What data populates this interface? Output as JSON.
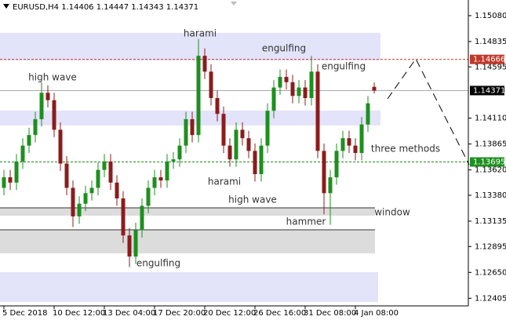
{
  "chart_data": {
    "type": "candlestick",
    "title": "EURUSD,H4  1.14406 1.14447 1.14343 1.14371",
    "categories": [
      "5 Dec 2018",
      null,
      null,
      null,
      null,
      null,
      null,
      null,
      "10 Dec 12:00",
      null,
      null,
      null,
      null,
      null,
      null,
      null,
      "13 Dec 04:00",
      null,
      null,
      null,
      null,
      null,
      null,
      null,
      "17 Dec 20:00",
      null,
      null,
      null,
      null,
      null,
      null,
      null,
      "20 Dec 12:00",
      null,
      null,
      null,
      null,
      null,
      null,
      null,
      "26 Dec 16:00",
      null,
      null,
      null,
      null,
      null,
      null,
      null,
      "31 Dec 08:00",
      null,
      null,
      null,
      null,
      null,
      null,
      null,
      "4 Jan 08:00",
      null,
      null,
      null
    ],
    "open": [
      1.1345,
      1.1355,
      1.135,
      1.137,
      1.1385,
      1.1395,
      1.141,
      1.1435,
      1.1428,
      1.14,
      1.1368,
      1.1345,
      1.1318,
      1.133,
      1.134,
      1.1345,
      1.1362,
      1.137,
      1.135,
      1.1335,
      1.13,
      1.128,
      1.1305,
      1.1328,
      1.1345,
      1.1355,
      1.1352,
      1.137,
      1.1372,
      1.1385,
      1.141,
      1.1395,
      1.147,
      1.1455,
      1.143,
      1.1415,
      1.1385,
      1.1372,
      1.14,
      1.1392,
      1.138,
      1.1358,
      1.1385,
      1.1418,
      1.144,
      1.145,
      1.1445,
      1.1432,
      1.144,
      1.143,
      1.1455,
      1.138,
      1.134,
      1.1355,
      1.138,
      1.1392,
      1.1385,
      1.1378,
      1.1405,
      1.14406
    ],
    "high": [
      1.1362,
      1.1362,
      1.1377,
      1.1392,
      1.1402,
      1.1417,
      1.1445,
      1.1442,
      1.1435,
      1.1407,
      1.1375,
      1.1352,
      1.1337,
      1.1347,
      1.1352,
      1.1369,
      1.1377,
      1.1377,
      1.1357,
      1.1342,
      1.1307,
      1.1312,
      1.1335,
      1.1352,
      1.1362,
      1.1362,
      1.1377,
      1.1379,
      1.1392,
      1.1417,
      1.1417,
      1.1486,
      1.1477,
      1.1462,
      1.1437,
      1.1422,
      1.1392,
      1.1407,
      1.1407,
      1.1399,
      1.1387,
      1.1392,
      1.1425,
      1.1447,
      1.1457,
      1.1457,
      1.1452,
      1.1447,
      1.1447,
      1.147,
      1.1462,
      1.1387,
      1.1362,
      1.1387,
      1.1399,
      1.1399,
      1.1392,
      1.1412,
      1.1432,
      1.14447
    ],
    "low": [
      1.1338,
      1.1343,
      1.1343,
      1.1363,
      1.1378,
      1.1388,
      1.1403,
      1.1421,
      1.1393,
      1.1361,
      1.1338,
      1.1308,
      1.1311,
      1.1323,
      1.1333,
      1.1338,
      1.1355,
      1.1343,
      1.1328,
      1.1293,
      1.127,
      1.1273,
      1.1298,
      1.1321,
      1.1338,
      1.1345,
      1.1345,
      1.1363,
      1.1365,
      1.1378,
      1.1388,
      1.1388,
      1.1448,
      1.1423,
      1.1408,
      1.1378,
      1.1365,
      1.1365,
      1.1385,
      1.1373,
      1.1351,
      1.1351,
      1.1378,
      1.1411,
      1.1433,
      1.1438,
      1.1425,
      1.1425,
      1.1423,
      1.1423,
      1.1373,
      1.132,
      1.131,
      1.1348,
      1.1373,
      1.1378,
      1.1371,
      1.1371,
      1.1398,
      1.14343
    ],
    "close": [
      1.1355,
      1.135,
      1.137,
      1.1385,
      1.1395,
      1.141,
      1.1435,
      1.1428,
      1.14,
      1.1368,
      1.1345,
      1.1318,
      1.133,
      1.134,
      1.1345,
      1.1362,
      1.137,
      1.135,
      1.1335,
      1.13,
      1.128,
      1.1305,
      1.1328,
      1.1345,
      1.1355,
      1.1352,
      1.137,
      1.1372,
      1.1385,
      1.141,
      1.1395,
      1.147,
      1.1455,
      1.143,
      1.1415,
      1.1385,
      1.1372,
      1.14,
      1.1392,
      1.138,
      1.1358,
      1.1385,
      1.1418,
      1.144,
      1.145,
      1.1445,
      1.1432,
      1.144,
      1.143,
      1.1455,
      1.138,
      1.134,
      1.1355,
      1.138,
      1.1392,
      1.1385,
      1.1378,
      1.1405,
      1.1425,
      1.14371
    ],
    "up_color": "#1e8f1e",
    "down_color": "#8b1c1c",
    "ylim": [
      1.12333,
      1.15228
    ],
    "yticks": [
      {
        "value": 1.1508,
        "label": "1.15080"
      },
      {
        "value": 1.14835,
        "label": "1.14835"
      },
      {
        "value": 1.14595,
        "label": "1.14595"
      },
      {
        "value": 1.1411,
        "label": "1.14110"
      },
      {
        "value": 1.13865,
        "label": "1.13865"
      },
      {
        "value": 1.1362,
        "label": "1.13620"
      },
      {
        "value": 1.1338,
        "label": "1.13380"
      },
      {
        "value": 1.13135,
        "label": "1.13135"
      },
      {
        "value": 1.12895,
        "label": "1.12895"
      },
      {
        "value": 1.1265,
        "label": "1.12650"
      },
      {
        "value": 1.12405,
        "label": "1.12405"
      }
    ],
    "levels": [
      {
        "value": 1.14666,
        "color": "#c0392b"
      },
      {
        "value": 1.14371,
        "color": "#000000"
      },
      {
        "value": 1.13695,
        "color": "#1e8f1e"
      }
    ],
    "zones": [
      {
        "low": 1.14657,
        "high": 1.14917,
        "color": "#e3e3fa"
      },
      {
        "low": 1.14041,
        "high": 1.14182,
        "color": "#e3e3fa"
      },
      {
        "low": 1.13187,
        "high": 1.13261,
        "color": "#dcdcdc"
      },
      {
        "low": 1.1283,
        "high": 1.13053,
        "color": "#dcdcdc"
      },
      {
        "low": 1.1237,
        "high": 1.12652,
        "color": "#e3e3fa"
      }
    ],
    "annotations": [
      "harami",
      "engulfing",
      "engulfing",
      "high wave",
      "harami",
      "high wave",
      "three methods",
      "window",
      "hammer",
      "engulfing"
    ]
  }
}
